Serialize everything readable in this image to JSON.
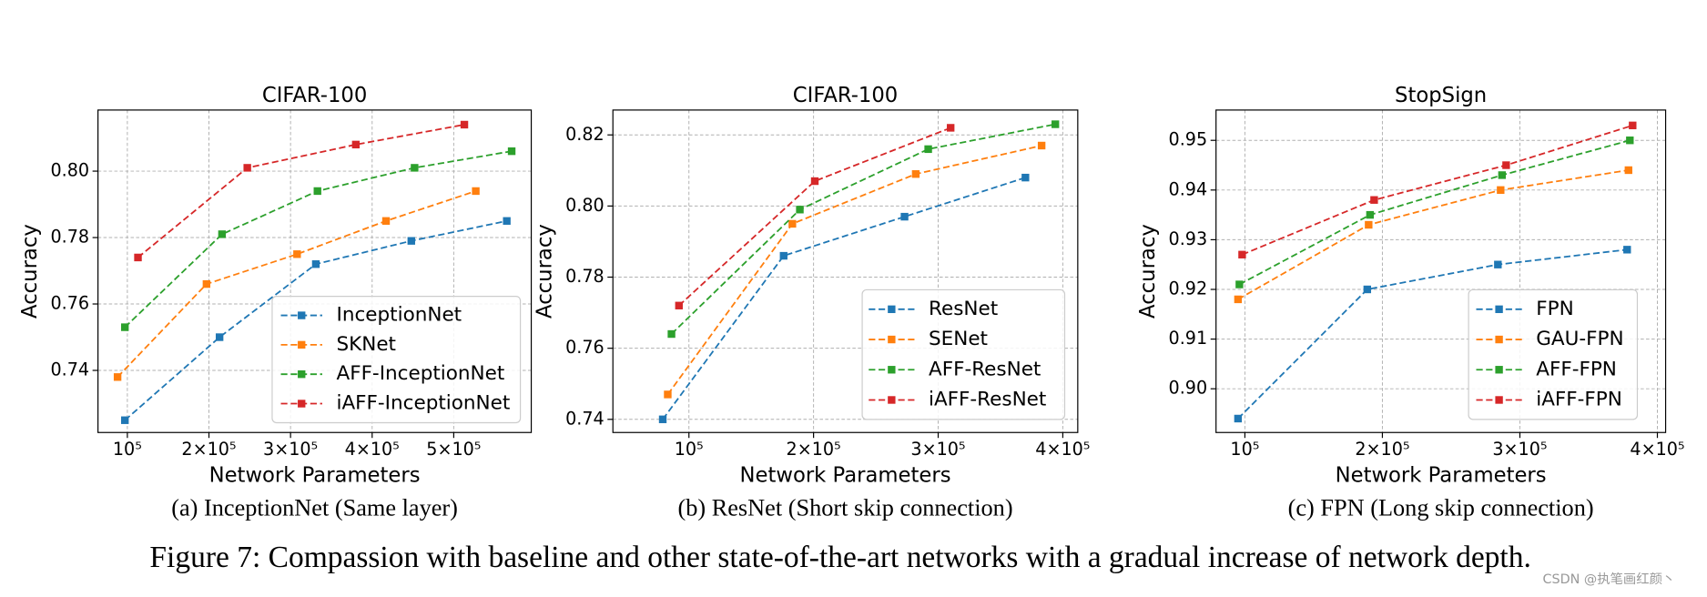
{
  "chart_data": [
    {
      "type": "line",
      "title": "CIFAR-100",
      "xlabel": "Network Parameters",
      "ylabel": "Accuracy",
      "caption": "(a) InceptionNet (Same layer)",
      "xlim": [
        64000,
        595000
      ],
      "ylim": [
        0.7213,
        0.8184
      ],
      "xticks": [
        {
          "value": 100000,
          "label": "10⁵"
        },
        {
          "value": 200000,
          "label": "2×10⁵"
        },
        {
          "value": 300000,
          "label": "3×10⁵"
        },
        {
          "value": 400000,
          "label": "4×10⁵"
        },
        {
          "value": 500000,
          "label": "5×10⁵"
        }
      ],
      "yticks": [
        0.74,
        0.76,
        0.78,
        {
          "value": 0.8,
          "label": "0.80"
        }
      ],
      "grid": true,
      "legend": "lower right",
      "series": [
        {
          "name": "InceptionNet",
          "color": "#1f77b4",
          "x": [
            97000,
            213000,
            331000,
            448000,
            565000
          ],
          "values": [
            0.725,
            0.75,
            0.772,
            0.779,
            0.785
          ]
        },
        {
          "name": "SKNet",
          "color": "#ff7f0e",
          "x": [
            88000,
            197000,
            308000,
            417000,
            527000
          ],
          "values": [
            0.738,
            0.766,
            0.775,
            0.785,
            0.794
          ]
        },
        {
          "name": "AFF-InceptionNet",
          "color": "#2ca02c",
          "x": [
            97000,
            216000,
            333000,
            452000,
            571000
          ],
          "values": [
            0.753,
            0.781,
            0.794,
            0.801,
            0.806
          ]
        },
        {
          "name": "iAFF-InceptionNet",
          "color": "#d62728",
          "x": [
            113000,
            247000,
            380000,
            513000
          ],
          "values": [
            0.774,
            0.801,
            0.808,
            0.814
          ]
        }
      ]
    },
    {
      "type": "line",
      "title": "CIFAR-100",
      "xlabel": "Network Parameters",
      "ylabel": "Accuracy",
      "caption": "(b) ResNet (Short skip connection)",
      "xlim": [
        39000,
        412000
      ],
      "ylim": [
        0.7363,
        0.827
      ],
      "xticks": [
        {
          "value": 100000,
          "label": "10⁵"
        },
        {
          "value": 200000,
          "label": "2×10⁵"
        },
        {
          "value": 300000,
          "label": "3×10⁵"
        },
        {
          "value": 400000,
          "label": "4×10⁵"
        }
      ],
      "yticks": [
        0.74,
        0.76,
        0.78,
        {
          "value": 0.8,
          "label": "0.80"
        },
        0.82
      ],
      "grid": true,
      "legend": "lower right",
      "series": [
        {
          "name": "ResNet",
          "color": "#1f77b4",
          "x": [
            79000,
            176000,
            273000,
            370000
          ],
          "values": [
            0.74,
            0.786,
            0.797,
            0.808
          ]
        },
        {
          "name": "SENet",
          "color": "#ff7f0e",
          "x": [
            83000,
            183000,
            282000,
            383000
          ],
          "values": [
            0.747,
            0.795,
            0.809,
            0.817
          ]
        },
        {
          "name": "AFF-ResNet",
          "color": "#2ca02c",
          "x": [
            86000,
            189000,
            292000,
            394000
          ],
          "values": [
            0.764,
            0.799,
            0.816,
            0.823
          ]
        },
        {
          "name": "iAFF-ResNet",
          "color": "#d62728",
          "x": [
            92000,
            201000,
            310000
          ],
          "values": [
            0.772,
            0.807,
            0.822
          ]
        }
      ]
    },
    {
      "type": "line",
      "title": "StopSign",
      "xlabel": "Network Parameters",
      "ylabel": "Accuracy",
      "caption": "(c) FPN (Long skip connection)",
      "xlim": [
        79000,
        406000
      ],
      "ylim": [
        0.8912,
        0.9561
      ],
      "xticks": [
        {
          "value": 100000,
          "label": "10⁵"
        },
        {
          "value": 200000,
          "label": "2×10⁵"
        },
        {
          "value": 300000,
          "label": "3×10⁵"
        },
        {
          "value": 400000,
          "label": "4×10⁵"
        }
      ],
      "yticks": [
        {
          "value": 0.9,
          "label": "0.90"
        },
        0.91,
        0.92,
        0.93,
        0.94,
        0.95
      ],
      "grid": true,
      "legend": "lower right",
      "series": [
        {
          "name": "FPN",
          "color": "#1f77b4",
          "x": [
            95000,
            189000,
            284000,
            378000
          ],
          "values": [
            0.894,
            0.92,
            0.925,
            0.928
          ]
        },
        {
          "name": "GAU-FPN",
          "color": "#ff7f0e",
          "x": [
            95000,
            190000,
            286000,
            379000
          ],
          "values": [
            0.918,
            0.933,
            0.94,
            0.944
          ]
        },
        {
          "name": "AFF-FPN",
          "color": "#2ca02c",
          "x": [
            96000,
            191000,
            287000,
            380000
          ],
          "values": [
            0.921,
            0.935,
            0.943,
            0.95
          ]
        },
        {
          "name": "iAFF-FPN",
          "color": "#d62728",
          "x": [
            98000,
            194000,
            290000,
            382000
          ],
          "values": [
            0.927,
            0.938,
            0.945,
            0.953
          ]
        }
      ]
    }
  ],
  "figure_caption": "Figure 7: Compassion with baseline and other state-of-the-art networks with a gradual increase of network depth.",
  "watermark": "CSDN @执笔画红颜丶"
}
